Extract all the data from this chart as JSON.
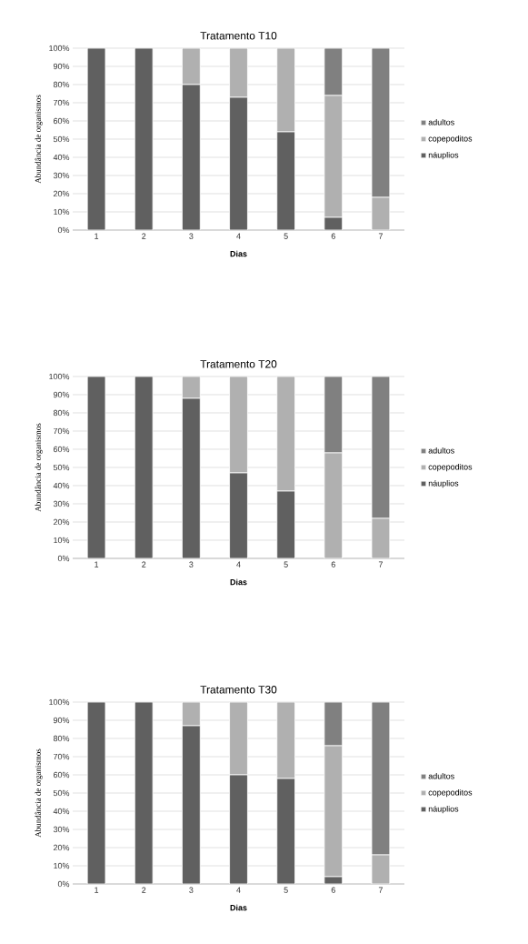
{
  "chart_data": [
    {
      "type": "bar",
      "title": "Tratamento T10",
      "xlabel": "Dias",
      "ylabel": "Abundância de organismos",
      "stacked": true,
      "grid": "y",
      "legend": "right",
      "categories": [
        "1",
        "2",
        "3",
        "4",
        "5",
        "6",
        "7"
      ],
      "ylim": [
        0,
        100
      ],
      "yticks": [
        {
          "value": 0,
          "label": "0%"
        },
        {
          "value": 10,
          "label": "10%"
        },
        {
          "value": 20,
          "label": "20%"
        },
        {
          "value": 30,
          "label": "30%"
        },
        {
          "value": 40,
          "label": "40%"
        },
        {
          "value": 50,
          "label": "50%"
        },
        {
          "value": 60,
          "label": "60%"
        },
        {
          "value": 70,
          "label": "70%"
        },
        {
          "value": 80,
          "label": "80%"
        },
        {
          "value": 90,
          "label": "90%"
        },
        {
          "value": 100,
          "label": "100%"
        }
      ],
      "series": [
        {
          "name": "náuplios",
          "color": "#606060",
          "values": [
            100,
            100,
            80,
            73,
            54,
            7,
            0
          ]
        },
        {
          "name": "copepoditos",
          "color": "#b0b0b0",
          "values": [
            0,
            0,
            20,
            27,
            46,
            67,
            18
          ]
        },
        {
          "name": "adultos",
          "color": "#808080",
          "values": [
            0,
            0,
            0,
            0,
            0,
            26,
            82
          ]
        }
      ]
    },
    {
      "type": "bar",
      "title": "Tratamento T20",
      "xlabel": "Dias",
      "ylabel": "Abundância de organismos",
      "stacked": true,
      "grid": "y",
      "legend": "right",
      "categories": [
        "1",
        "2",
        "3",
        "4",
        "5",
        "6",
        "7"
      ],
      "ylim": [
        0,
        100
      ],
      "yticks": [
        {
          "value": 0,
          "label": "0%"
        },
        {
          "value": 10,
          "label": "10%"
        },
        {
          "value": 20,
          "label": "20%"
        },
        {
          "value": 30,
          "label": "30%"
        },
        {
          "value": 40,
          "label": "40%"
        },
        {
          "value": 50,
          "label": "50%"
        },
        {
          "value": 60,
          "label": "60%"
        },
        {
          "value": 70,
          "label": "70%"
        },
        {
          "value": 80,
          "label": "80%"
        },
        {
          "value": 90,
          "label": "90%"
        },
        {
          "value": 100,
          "label": "100%"
        }
      ],
      "series": [
        {
          "name": "náuplios",
          "color": "#606060",
          "values": [
            100,
            100,
            88,
            47,
            37,
            0,
            0
          ]
        },
        {
          "name": "copepoditos",
          "color": "#b0b0b0",
          "values": [
            0,
            0,
            12,
            53,
            63,
            58,
            22
          ]
        },
        {
          "name": "adultos",
          "color": "#808080",
          "values": [
            0,
            0,
            0,
            0,
            0,
            42,
            78
          ]
        }
      ]
    },
    {
      "type": "bar",
      "title": "Tratamento T30",
      "xlabel": "Dias",
      "ylabel": "Abundância de organismos",
      "stacked": true,
      "grid": "y",
      "legend": "right",
      "categories": [
        "1",
        "2",
        "3",
        "4",
        "5",
        "6",
        "7"
      ],
      "ylim": [
        0,
        100
      ],
      "yticks": [
        {
          "value": 0,
          "label": "0%"
        },
        {
          "value": 10,
          "label": "10%"
        },
        {
          "value": 20,
          "label": "20%"
        },
        {
          "value": 30,
          "label": "30%"
        },
        {
          "value": 40,
          "label": "40%"
        },
        {
          "value": 50,
          "label": "50%"
        },
        {
          "value": 60,
          "label": "60%"
        },
        {
          "value": 70,
          "label": "70%"
        },
        {
          "value": 80,
          "label": "80%"
        },
        {
          "value": 90,
          "label": "90%"
        },
        {
          "value": 100,
          "label": "100%"
        }
      ],
      "series": [
        {
          "name": "náuplios",
          "color": "#606060",
          "values": [
            100,
            100,
            87,
            60,
            58,
            4,
            0
          ]
        },
        {
          "name": "copepoditos",
          "color": "#b0b0b0",
          "values": [
            0,
            0,
            13,
            40,
            42,
            72,
            16
          ]
        },
        {
          "name": "adultos",
          "color": "#808080",
          "values": [
            0,
            0,
            0,
            0,
            0,
            24,
            84
          ]
        }
      ]
    }
  ]
}
